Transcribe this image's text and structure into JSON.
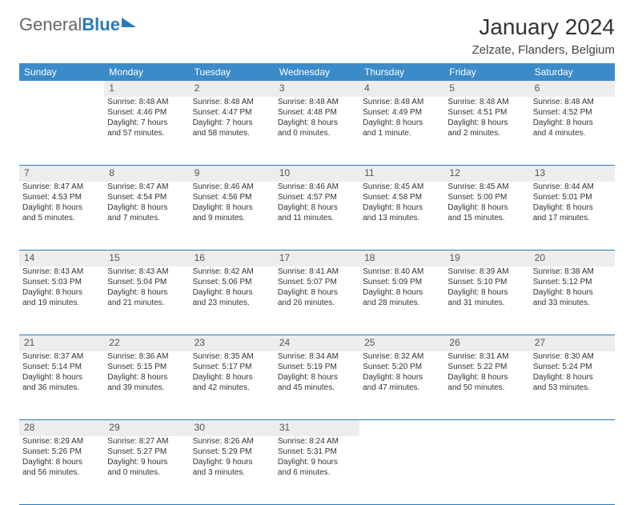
{
  "brand": {
    "part1": "General",
    "part2": "Blue"
  },
  "title": "January 2024",
  "location": "Zelzate, Flanders, Belgium",
  "colors": {
    "header_bg": "#3b8bc9",
    "header_text": "#ffffff",
    "daynum_bg": "#eceded",
    "border": "#2a7ab8",
    "text": "#333333",
    "brand_blue": "#2a7ab8",
    "brand_gray": "#666666"
  },
  "weekdays": [
    "Sunday",
    "Monday",
    "Tuesday",
    "Wednesday",
    "Thursday",
    "Friday",
    "Saturday"
  ],
  "weeks": [
    {
      "nums": [
        "",
        "1",
        "2",
        "3",
        "4",
        "5",
        "6"
      ],
      "cells": [
        [],
        [
          "Sunrise: 8:48 AM",
          "Sunset: 4:46 PM",
          "Daylight: 7 hours",
          "and 57 minutes."
        ],
        [
          "Sunrise: 8:48 AM",
          "Sunset: 4:47 PM",
          "Daylight: 7 hours",
          "and 58 minutes."
        ],
        [
          "Sunrise: 8:48 AM",
          "Sunset: 4:48 PM",
          "Daylight: 8 hours",
          "and 0 minutes."
        ],
        [
          "Sunrise: 8:48 AM",
          "Sunset: 4:49 PM",
          "Daylight: 8 hours",
          "and 1 minute."
        ],
        [
          "Sunrise: 8:48 AM",
          "Sunset: 4:51 PM",
          "Daylight: 8 hours",
          "and 2 minutes."
        ],
        [
          "Sunrise: 8:48 AM",
          "Sunset: 4:52 PM",
          "Daylight: 8 hours",
          "and 4 minutes."
        ]
      ]
    },
    {
      "nums": [
        "7",
        "8",
        "9",
        "10",
        "11",
        "12",
        "13"
      ],
      "cells": [
        [
          "Sunrise: 8:47 AM",
          "Sunset: 4:53 PM",
          "Daylight: 8 hours",
          "and 5 minutes."
        ],
        [
          "Sunrise: 8:47 AM",
          "Sunset: 4:54 PM",
          "Daylight: 8 hours",
          "and 7 minutes."
        ],
        [
          "Sunrise: 8:46 AM",
          "Sunset: 4:56 PM",
          "Daylight: 8 hours",
          "and 9 minutes."
        ],
        [
          "Sunrise: 8:46 AM",
          "Sunset: 4:57 PM",
          "Daylight: 8 hours",
          "and 11 minutes."
        ],
        [
          "Sunrise: 8:45 AM",
          "Sunset: 4:58 PM",
          "Daylight: 8 hours",
          "and 13 minutes."
        ],
        [
          "Sunrise: 8:45 AM",
          "Sunset: 5:00 PM",
          "Daylight: 8 hours",
          "and 15 minutes."
        ],
        [
          "Sunrise: 8:44 AM",
          "Sunset: 5:01 PM",
          "Daylight: 8 hours",
          "and 17 minutes."
        ]
      ]
    },
    {
      "nums": [
        "14",
        "15",
        "16",
        "17",
        "18",
        "19",
        "20"
      ],
      "cells": [
        [
          "Sunrise: 8:43 AM",
          "Sunset: 5:03 PM",
          "Daylight: 8 hours",
          "and 19 minutes."
        ],
        [
          "Sunrise: 8:43 AM",
          "Sunset: 5:04 PM",
          "Daylight: 8 hours",
          "and 21 minutes."
        ],
        [
          "Sunrise: 8:42 AM",
          "Sunset: 5:06 PM",
          "Daylight: 8 hours",
          "and 23 minutes."
        ],
        [
          "Sunrise: 8:41 AM",
          "Sunset: 5:07 PM",
          "Daylight: 8 hours",
          "and 26 minutes."
        ],
        [
          "Sunrise: 8:40 AM",
          "Sunset: 5:09 PM",
          "Daylight: 8 hours",
          "and 28 minutes."
        ],
        [
          "Sunrise: 8:39 AM",
          "Sunset: 5:10 PM",
          "Daylight: 8 hours",
          "and 31 minutes."
        ],
        [
          "Sunrise: 8:38 AM",
          "Sunset: 5:12 PM",
          "Daylight: 8 hours",
          "and 33 minutes."
        ]
      ]
    },
    {
      "nums": [
        "21",
        "22",
        "23",
        "24",
        "25",
        "26",
        "27"
      ],
      "cells": [
        [
          "Sunrise: 8:37 AM",
          "Sunset: 5:14 PM",
          "Daylight: 8 hours",
          "and 36 minutes."
        ],
        [
          "Sunrise: 8:36 AM",
          "Sunset: 5:15 PM",
          "Daylight: 8 hours",
          "and 39 minutes."
        ],
        [
          "Sunrise: 8:35 AM",
          "Sunset: 5:17 PM",
          "Daylight: 8 hours",
          "and 42 minutes."
        ],
        [
          "Sunrise: 8:34 AM",
          "Sunset: 5:19 PM",
          "Daylight: 8 hours",
          "and 45 minutes."
        ],
        [
          "Sunrise: 8:32 AM",
          "Sunset: 5:20 PM",
          "Daylight: 8 hours",
          "and 47 minutes."
        ],
        [
          "Sunrise: 8:31 AM",
          "Sunset: 5:22 PM",
          "Daylight: 8 hours",
          "and 50 minutes."
        ],
        [
          "Sunrise: 8:30 AM",
          "Sunset: 5:24 PM",
          "Daylight: 8 hours",
          "and 53 minutes."
        ]
      ]
    },
    {
      "nums": [
        "28",
        "29",
        "30",
        "31",
        "",
        "",
        ""
      ],
      "cells": [
        [
          "Sunrise: 8:29 AM",
          "Sunset: 5:26 PM",
          "Daylight: 8 hours",
          "and 56 minutes."
        ],
        [
          "Sunrise: 8:27 AM",
          "Sunset: 5:27 PM",
          "Daylight: 9 hours",
          "and 0 minutes."
        ],
        [
          "Sunrise: 8:26 AM",
          "Sunset: 5:29 PM",
          "Daylight: 9 hours",
          "and 3 minutes."
        ],
        [
          "Sunrise: 8:24 AM",
          "Sunset: 5:31 PM",
          "Daylight: 9 hours",
          "and 6 minutes."
        ],
        [],
        [],
        []
      ]
    }
  ]
}
